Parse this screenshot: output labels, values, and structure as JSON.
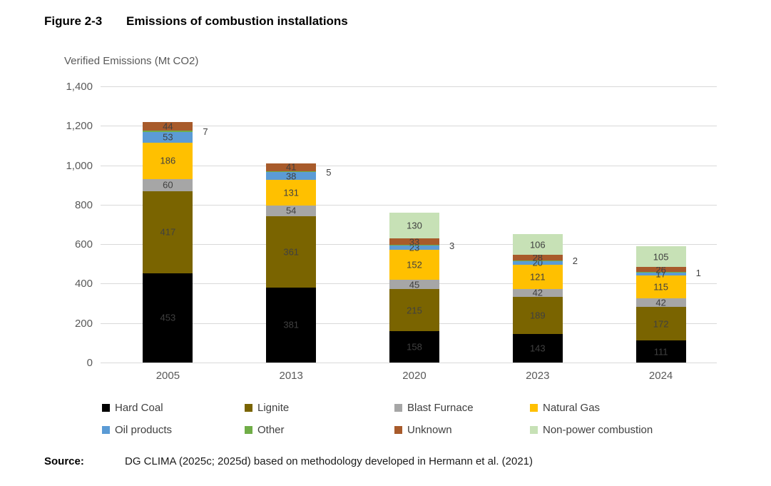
{
  "figure": {
    "label": "Figure 2-3",
    "title": "Emissions of combustion installations",
    "axis_title": "Verified Emissions (Mt CO2)"
  },
  "source": {
    "label": "Source:",
    "text": "DG CLIMA (2025c; 2025d) based on methodology developed in Hermann et al. (2021)"
  },
  "chart_data": {
    "type": "bar",
    "stacked": true,
    "title": "Emissions of combustion installations",
    "ylabel": "Verified Emissions (Mt CO2)",
    "xlabel": "",
    "categories": [
      "2005",
      "2013",
      "2020",
      "2023",
      "2024"
    ],
    "series": [
      {
        "name": "Hard Coal",
        "color": "#000000",
        "values": [
          453,
          381,
          158,
          143,
          111
        ]
      },
      {
        "name": "Lignite",
        "color": "#7a6400",
        "values": [
          417,
          361,
          215,
          189,
          172
        ]
      },
      {
        "name": "Blast Furnace",
        "color": "#a6a6a6",
        "values": [
          60,
          54,
          45,
          42,
          42
        ]
      },
      {
        "name": "Natural Gas",
        "color": "#ffc000",
        "values": [
          186,
          131,
          152,
          121,
          115
        ]
      },
      {
        "name": "Oil products",
        "color": "#5b9bd5",
        "values": [
          53,
          38,
          23,
          20,
          17
        ]
      },
      {
        "name": "Other",
        "color": "#70ad47",
        "values": [
          7,
          5,
          3,
          2,
          1
        ],
        "label_outside": true
      },
      {
        "name": "Unknown",
        "color": "#a85b2b",
        "values": [
          44,
          41,
          33,
          28,
          26
        ]
      },
      {
        "name": "Non-power combustion",
        "color": "#c7e1b6",
        "values": [
          0,
          0,
          130,
          106,
          105
        ]
      }
    ],
    "ylim": [
      0,
      1400
    ],
    "ytick_interval": 200,
    "yticks": [
      "0",
      "200",
      "400",
      "600",
      "800",
      "1,000",
      "1,200",
      "1,400"
    ],
    "grid": true,
    "legend_position": "bottom",
    "legend_rows": [
      [
        "Hard Coal",
        "Lignite",
        "Blast Furnace",
        "Natural Gas"
      ],
      [
        "Oil products",
        "Other",
        "Unknown",
        "Non-power combustion"
      ]
    ]
  }
}
